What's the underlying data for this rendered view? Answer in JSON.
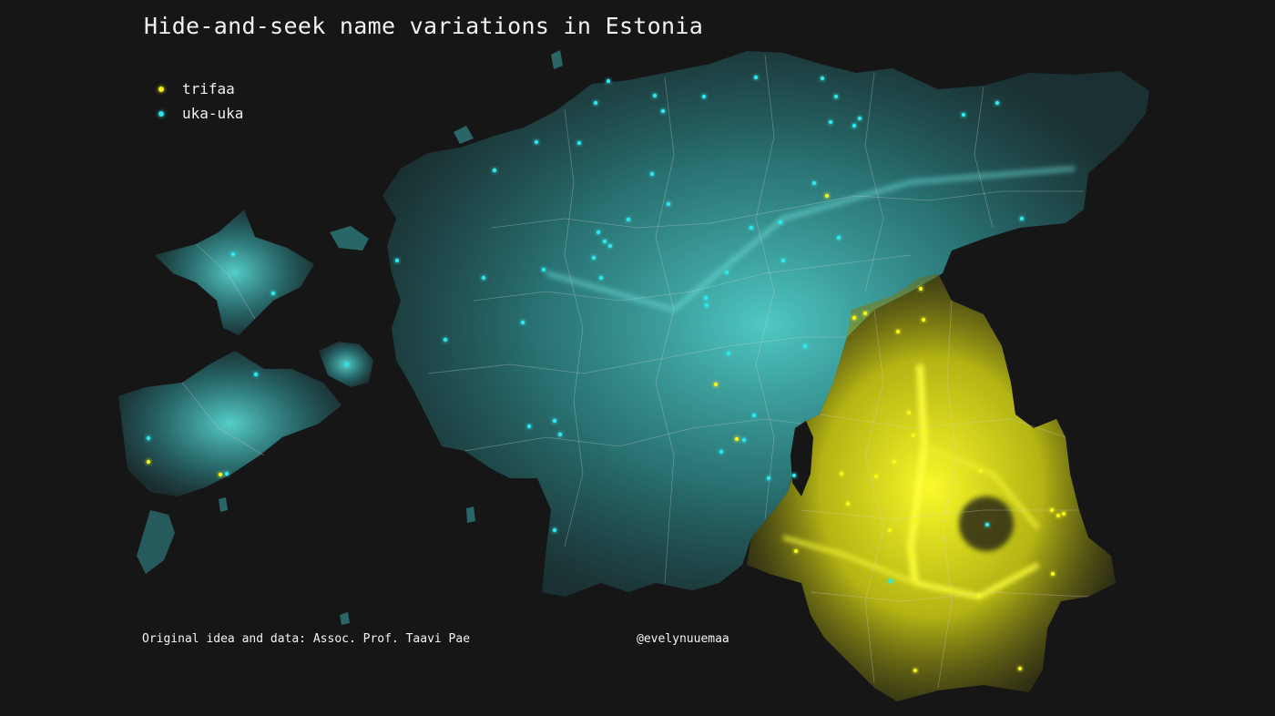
{
  "title": "Hide-and-seek name variations in Estonia",
  "legend": [
    {
      "label": "trifaa",
      "color": "#f2f21a"
    },
    {
      "label": "uka-uka",
      "color": "#2fe0e6"
    }
  ],
  "credit": "Original idea and data: Assoc. Prof. Taavi Pae",
  "handle": "@evelynuuemaa",
  "colors": {
    "background": "#161616",
    "uka_uka_glow": "#4fd6d0",
    "trifaa_glow": "#f2f21a",
    "borders": "#d8d8d8"
  }
}
